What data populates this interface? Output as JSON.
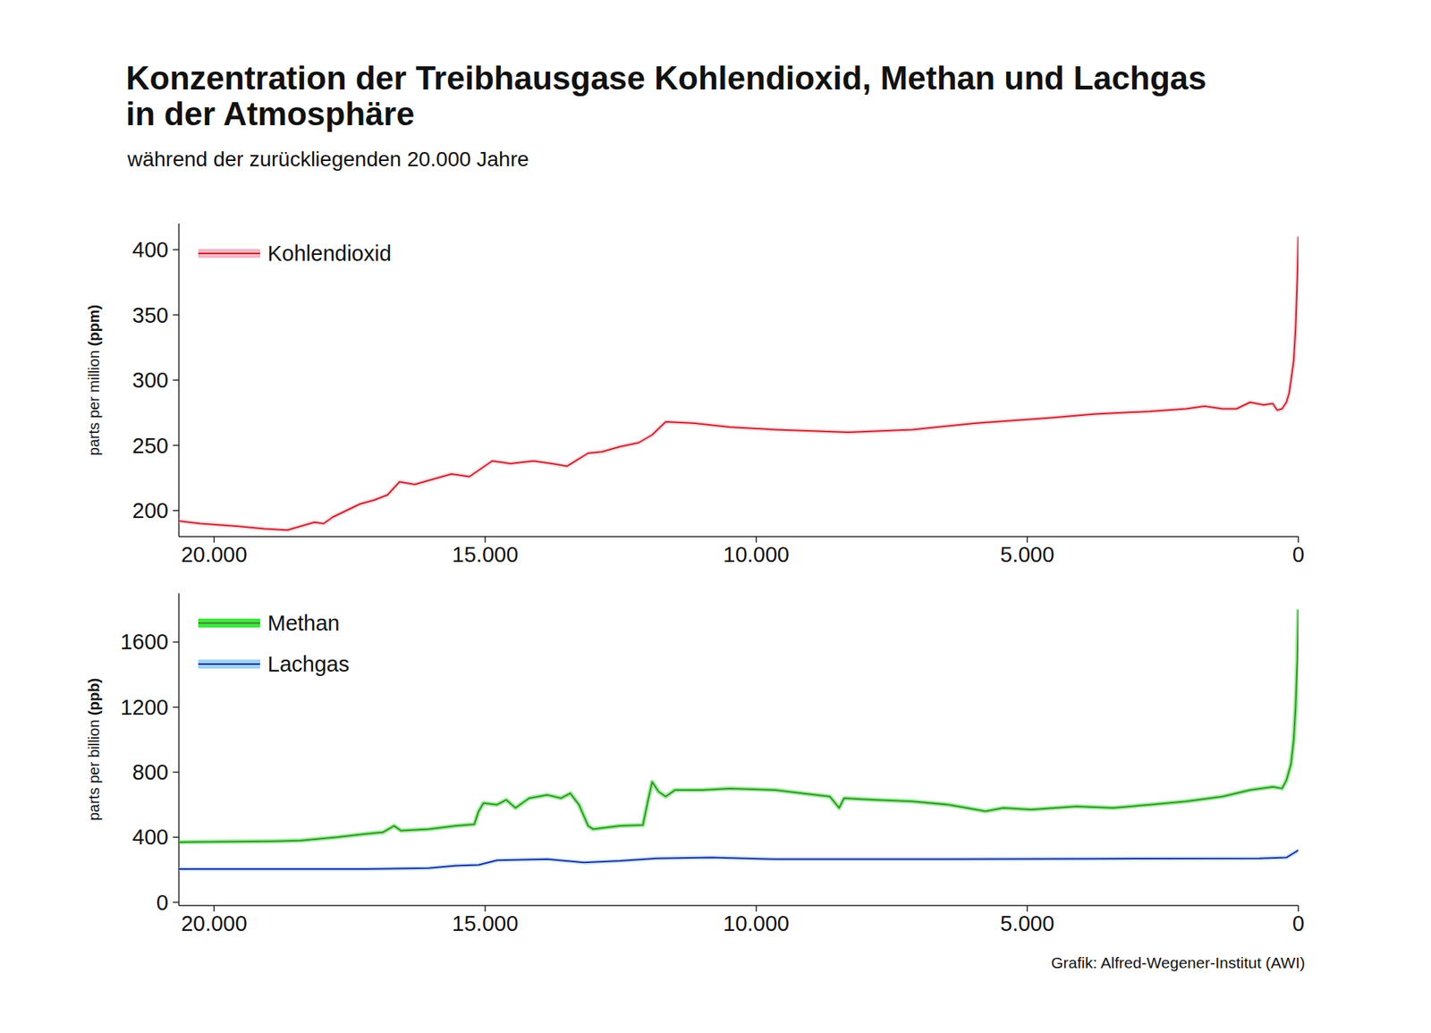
{
  "chart_data": [
    {
      "type": "line",
      "title": "Konzentration der Treibhausgase Kohlendioxid, Methan und Lachgas\nin der Atmosphäre",
      "subtitle": "während der zurückliegenden 20.000 Jahre",
      "ylabel": "parts per million (ppm)",
      "xlim": [
        20650,
        0
      ],
      "ylim": [
        180,
        420
      ],
      "xticks": [
        {
          "value": 20000,
          "label": "20.000"
        },
        {
          "value": 15000,
          "label": "15.000"
        },
        {
          "value": 10000,
          "label": "10.000"
        },
        {
          "value": 5000,
          "label": "5.000"
        },
        0
      ],
      "yticks": [
        200,
        250,
        300,
        350,
        400
      ],
      "grid": false,
      "legend": "upper left",
      "series": [
        {
          "name": "Kohlendioxid",
          "color": "#c4262e",
          "x": [
            20650,
            20250,
            19580,
            19070,
            18650,
            18400,
            18150,
            17980,
            17810,
            17560,
            17310,
            17050,
            16800,
            16580,
            16300,
            15880,
            15620,
            15290,
            14870,
            14530,
            14110,
            13770,
            13490,
            13100,
            12850,
            12510,
            12170,
            11920,
            11670,
            11160,
            10490,
            9650,
            8300,
            7120,
            5940,
            4600,
            3750,
            2740,
            2070,
            1730,
            1400,
            1140,
            890,
            640,
            470,
            390,
            300,
            220,
            170,
            135,
            85,
            50,
            17,
            0
          ],
          "values": [
            192,
            190,
            188,
            186,
            185,
            188,
            191,
            190,
            195,
            200,
            205,
            208,
            212,
            222,
            220,
            225,
            228,
            226,
            238,
            236,
            238,
            236,
            234,
            244,
            245,
            249,
            252,
            258,
            268,
            267,
            264,
            262,
            260,
            262,
            267,
            271,
            274,
            276,
            278,
            280,
            278,
            278,
            283,
            281,
            282,
            277,
            278,
            283,
            290,
            300,
            315,
            340,
            380,
            410
          ]
        }
      ]
    },
    {
      "type": "line",
      "ylabel": "parts per billion (ppb)",
      "xlim": [
        20650,
        0
      ],
      "ylim": [
        -20,
        1900
      ],
      "xticks": [
        {
          "value": 20000,
          "label": "20.000"
        },
        {
          "value": 15000,
          "label": "15.000"
        },
        {
          "value": 10000,
          "label": "10.000"
        },
        {
          "value": 5000,
          "label": "5.000"
        },
        0
      ],
      "yticks": [
        0,
        400,
        800,
        1200,
        1600
      ],
      "grid": false,
      "legend": "upper left",
      "annotation": "Grafik: Alfred-Wegener-Institut (AWI)",
      "series": [
        {
          "name": "Methan",
          "color": "#3c8c2c",
          "x": [
            20650,
            18900,
            18400,
            17730,
            17220,
            16890,
            16680,
            16550,
            16040,
            15540,
            15200,
            15120,
            15030,
            14780,
            14610,
            14440,
            14190,
            13850,
            13600,
            13430,
            13270,
            13100,
            13010,
            12510,
            12090,
            12000,
            11920,
            11800,
            11670,
            11500,
            10990,
            10490,
            9650,
            9140,
            8640,
            8470,
            8380,
            7790,
            7120,
            6450,
            5770,
            5440,
            4930,
            4090,
            3420,
            2740,
            2070,
            1400,
            890,
            470,
            300,
            220,
            135,
            85,
            50,
            17,
            0
          ],
          "values": [
            370,
            375,
            380,
            400,
            420,
            430,
            470,
            440,
            450,
            470,
            480,
            560,
            610,
            600,
            630,
            580,
            640,
            660,
            640,
            670,
            600,
            470,
            450,
            470,
            475,
            620,
            740,
            680,
            650,
            690,
            690,
            700,
            690,
            670,
            650,
            580,
            640,
            630,
            620,
            600,
            560,
            580,
            570,
            590,
            580,
            600,
            620,
            650,
            690,
            710,
            700,
            750,
            850,
            1000,
            1200,
            1500,
            1800
          ]
        },
        {
          "name": "Lachgas",
          "color": "#1f2a9c",
          "x": [
            20650,
            17220,
            16040,
            15540,
            15120,
            14780,
            13850,
            13180,
            12510,
            11840,
            10820,
            9650,
            7120,
            3750,
            720,
            220,
            0
          ],
          "values": [
            205,
            205,
            210,
            225,
            230,
            258,
            265,
            245,
            255,
            270,
            275,
            265,
            265,
            268,
            270,
            275,
            320
          ]
        }
      ]
    }
  ]
}
